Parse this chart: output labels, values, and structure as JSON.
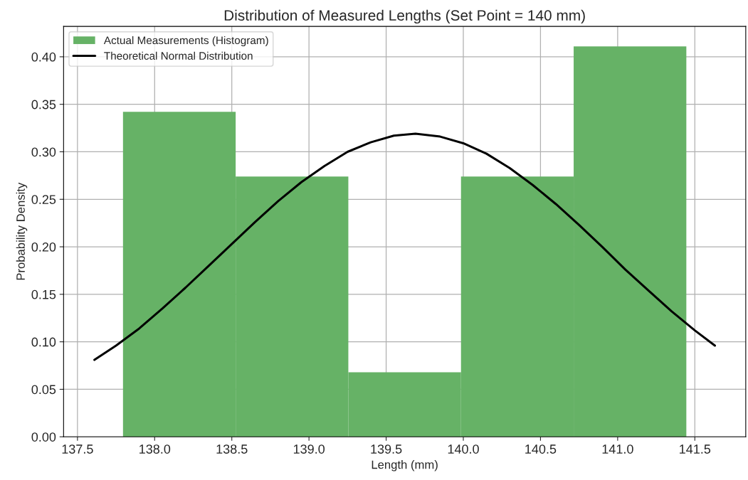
{
  "chart_data": {
    "type": "histogram",
    "title": "Distribution of Measured Lengths (Set Point = 140 mm)",
    "xlabel": "Length (mm)",
    "ylabel": "Probability Density",
    "bins": [
      137.795,
      138.525,
      139.255,
      139.985,
      140.715,
      141.445
    ],
    "series": [
      {
        "name": "Actual Measurements (Histogram)",
        "color": "#66b266",
        "values": [
          0.342,
          0.274,
          0.068,
          0.274,
          0.411
        ]
      },
      {
        "name": "Theoretical Normal Distribution",
        "type": "line",
        "color": "#000000",
        "x": [
          137.61,
          137.75,
          137.9,
          138.05,
          138.2,
          138.35,
          138.5,
          138.65,
          138.8,
          138.95,
          139.1,
          139.25,
          139.4,
          139.55,
          139.69,
          139.85,
          140.0,
          140.15,
          140.3,
          140.45,
          140.6,
          140.75,
          140.9,
          141.05,
          141.2,
          141.35,
          141.5,
          141.63
        ],
        "values": [
          0.081,
          0.096,
          0.114,
          0.135,
          0.157,
          0.18,
          0.203,
          0.226,
          0.248,
          0.268,
          0.285,
          0.3,
          0.31,
          0.317,
          0.319,
          0.316,
          0.309,
          0.298,
          0.283,
          0.265,
          0.245,
          0.223,
          0.2,
          0.176,
          0.154,
          0.132,
          0.112,
          0.096
        ]
      }
    ],
    "xlim": [
      137.41,
      141.83
    ],
    "xticks": [
      {
        "value": 137.5,
        "label": "137.5"
      },
      {
        "value": 138.0,
        "label": "138.0"
      },
      {
        "value": 138.5,
        "label": "138.5"
      },
      {
        "value": 139.0,
        "label": "139.0"
      },
      {
        "value": 139.5,
        "label": "139.5"
      },
      {
        "value": 140.0,
        "label": "140.0"
      },
      {
        "value": 140.5,
        "label": "140.5"
      },
      {
        "value": 141.0,
        "label": "141.0"
      },
      {
        "value": 141.5,
        "label": "141.5"
      }
    ],
    "ylim": [
      0,
      0.432
    ],
    "yticks": [
      {
        "value": 0,
        "label": "0.00"
      },
      {
        "value": 0.05,
        "label": "0.05"
      },
      {
        "value": 0.1,
        "label": "0.10"
      },
      {
        "value": 0.15,
        "label": "0.15"
      },
      {
        "value": 0.2,
        "label": "0.20"
      },
      {
        "value": 0.25,
        "label": "0.25"
      },
      {
        "value": 0.3,
        "label": "0.30"
      },
      {
        "value": 0.35,
        "label": "0.35"
      },
      {
        "value": 0.4,
        "label": "0.40"
      }
    ],
    "grid": true,
    "legend": "top left"
  }
}
